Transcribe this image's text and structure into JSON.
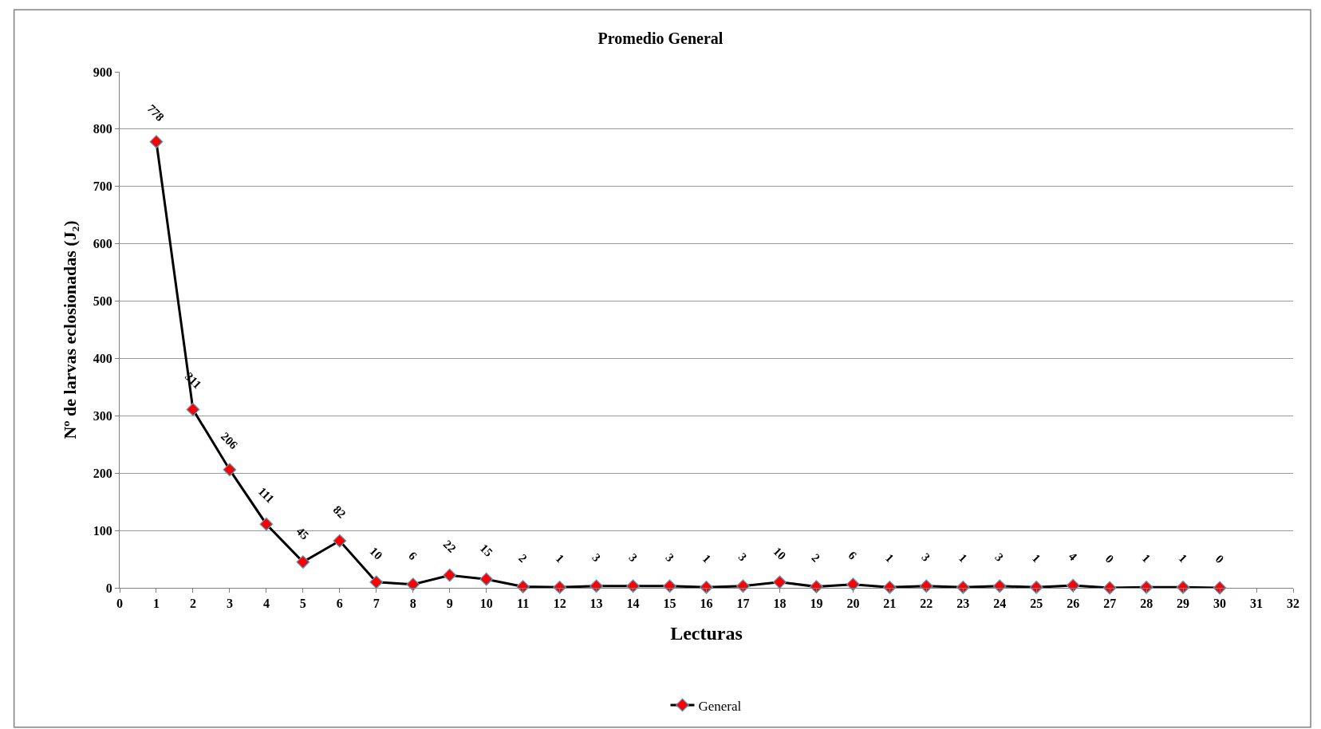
{
  "chart_data": {
    "type": "line",
    "title": "Promedio General",
    "xlabel": "Lecturas",
    "ylabel": "Nº de larvas eclosionadas (J₂)",
    "x": [
      1,
      2,
      3,
      4,
      5,
      6,
      7,
      8,
      9,
      10,
      11,
      12,
      13,
      14,
      15,
      16,
      17,
      18,
      19,
      20,
      21,
      22,
      23,
      24,
      25,
      26,
      27,
      28,
      29,
      30
    ],
    "series": [
      {
        "name": "General",
        "color": "#000000",
        "colors": [
          "#ff0000",
          "#ff0000",
          "#ff0000",
          "#ff0000",
          "#ff0000",
          "#ff0000",
          "#ff0000",
          "#ff0000",
          "#ff0000",
          "#ff0000",
          "#ff0000",
          "#ff0000",
          "#ff0000",
          "#ff0000",
          "#ff0000",
          "#ff0000",
          "#ff0000",
          "#ff0000",
          "#ff0000",
          "#ff0000",
          "#ff0000",
          "#ff0000",
          "#ff0000",
          "#ff0000",
          "#ff0000",
          "#ff0000",
          "#ff0000",
          "#ff0000",
          "#ff0000",
          "#ff0000"
        ],
        "values": [
          778,
          311,
          206,
          111,
          45,
          82,
          10,
          6,
          22,
          15,
          2,
          1,
          3,
          3,
          3,
          1,
          3,
          10,
          2,
          6,
          1,
          3,
          1,
          3,
          1,
          4,
          0,
          1,
          1,
          0
        ]
      }
    ],
    "xlim": [
      0,
      32
    ],
    "xticks": [
      0,
      1,
      2,
      3,
      4,
      5,
      6,
      7,
      8,
      9,
      10,
      11,
      12,
      13,
      14,
      15,
      16,
      17,
      18,
      19,
      20,
      21,
      22,
      23,
      24,
      25,
      26,
      27,
      28,
      29,
      30,
      31,
      32
    ],
    "ylim": [
      0,
      900
    ],
    "yticks": [
      0,
      100,
      200,
      300,
      400,
      500,
      600,
      700,
      800,
      900
    ],
    "grid": "y",
    "legend": "bottom",
    "marker": "diamond",
    "line_style": "solid",
    "data_labels": true
  }
}
